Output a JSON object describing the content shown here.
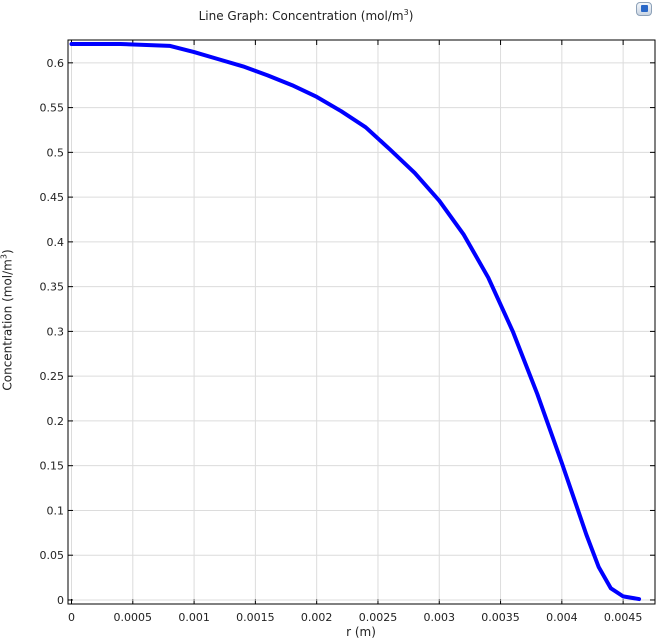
{
  "header": {
    "title_prefix": "Line Graph: Concentration (mol/m",
    "title_sup": "3",
    "title_suffix": ")"
  },
  "toolbar": {
    "export_icon": "image-export-icon"
  },
  "axes": {
    "xlabel": "r (m)",
    "ylabel_prefix": "Concentration (mol/m",
    "ylabel_sup": "3",
    "ylabel_suffix": ")"
  },
  "chart_data": {
    "type": "line",
    "title": "Line Graph: Concentration (mol/m3)",
    "xlabel": "r (m)",
    "ylabel": "Concentration (mol/m3)",
    "xlim": [
      -2.86e-05,
      0.00476
    ],
    "ylim": [
      -0.0045,
      0.6255
    ],
    "grid": true,
    "x_ticks": [
      "0",
      "0.0005",
      "0.001",
      "0.0015",
      "0.002",
      "0.0025",
      "0.003",
      "0.0035",
      "0.004",
      "0.0045"
    ],
    "y_ticks": [
      "0",
      "0.05",
      "0.1",
      "0.15",
      "0.2",
      "0.25",
      "0.3",
      "0.35",
      "0.4",
      "0.45",
      "0.5",
      "0.55",
      "0.6"
    ],
    "series": [
      {
        "color": "#0000ff",
        "x": [
          0,
          0.0004,
          0.0008,
          0.001,
          0.0012,
          0.0014,
          0.0016,
          0.0018,
          0.002,
          0.0022,
          0.0024,
          0.0026,
          0.0028,
          0.003,
          0.0032,
          0.0034,
          0.0036,
          0.0038,
          0.004,
          0.0041,
          0.0042,
          0.0043,
          0.0044,
          0.0045,
          0.00463
        ],
        "y": [
          0.621,
          0.621,
          0.619,
          0.612,
          0.604,
          0.596,
          0.586,
          0.575,
          0.562,
          0.546,
          0.528,
          0.503,
          0.477,
          0.446,
          0.408,
          0.36,
          0.3,
          0.23,
          0.153,
          0.113,
          0.073,
          0.037,
          0.013,
          0.004,
          0.001
        ]
      }
    ]
  }
}
